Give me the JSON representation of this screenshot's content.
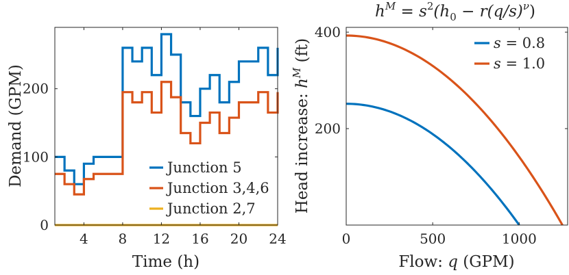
{
  "chart_data": [
    {
      "type": "line",
      "step": true,
      "title": "",
      "xlabel": "Time (h)",
      "ylabel": "Demand (GPM)",
      "xlim": [
        1,
        24
      ],
      "ylim": [
        0,
        290
      ],
      "xticks": [
        4,
        8,
        12,
        16,
        20,
        24
      ],
      "yticks": [
        0,
        100,
        200
      ],
      "x": [
        1,
        2,
        3,
        4,
        5,
        6,
        7,
        8,
        9,
        10,
        11,
        12,
        13,
        14,
        15,
        16,
        17,
        18,
        19,
        20,
        21,
        22,
        23,
        24
      ],
      "series": [
        {
          "name": "Junction 5",
          "color": "#0072BD",
          "values": [
            100,
            80,
            60,
            90,
            100,
            100,
            100,
            260,
            240,
            260,
            220,
            280,
            250,
            180,
            160,
            200,
            220,
            180,
            210,
            240,
            240,
            260,
            220,
            260
          ]
        },
        {
          "name": "Junction 3,4,6",
          "color": "#D95319",
          "values": [
            75,
            60,
            45,
            67.5,
            75,
            75,
            75,
            195,
            180,
            195,
            165,
            210,
            187.5,
            135,
            120,
            150,
            165,
            135,
            157.5,
            180,
            180,
            195,
            165,
            195
          ]
        },
        {
          "name": "Junction 2,7",
          "color": "#EDB120",
          "values": [
            0,
            0,
            0,
            0,
            0,
            0,
            0,
            0,
            0,
            0,
            0,
            0,
            0,
            0,
            0,
            0,
            0,
            0,
            0,
            0,
            0,
            0,
            0,
            0
          ]
        }
      ],
      "legend": "bottom-right"
    },
    {
      "type": "line",
      "title_parts": [
        "h",
        "M",
        " = s",
        "2",
        "(h",
        "0",
        " − r(q/s)",
        "ν",
        ")"
      ],
      "xlabel_parts": [
        "Flow: ",
        "q",
        " (GPM)"
      ],
      "ylabel_parts": [
        "Head increase: ",
        "h",
        "M",
        " (ft)"
      ],
      "xlim": [
        0,
        1280
      ],
      "ylim": [
        0,
        410
      ],
      "xticks": [
        0,
        500,
        1000
      ],
      "yticks": [
        200,
        400
      ],
      "series": [
        {
          "name": "s = 0.8",
          "name_parts": [
            "s",
            " = 0.8"
          ],
          "color": "#0072BD",
          "s": 0.8
        },
        {
          "name": "s = 1.0",
          "name_parts": [
            "s",
            " = 1.0"
          ],
          "color": "#D95319",
          "s": 1.0
        }
      ],
      "pump_curve": {
        "h0": 393,
        "q_max_at_s1": 1250,
        "nu": 2
      },
      "legend": "top-right"
    }
  ]
}
